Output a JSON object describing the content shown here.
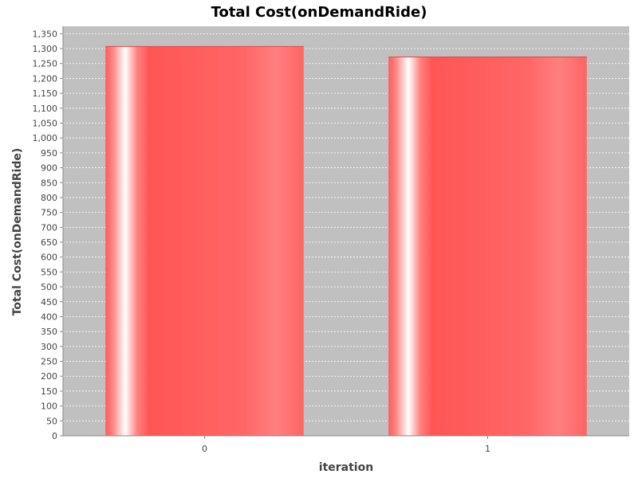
{
  "chart_data": {
    "type": "bar",
    "title": "Total Cost(onDemandRide)",
    "xlabel": "iteration",
    "ylabel": "Total Cost(onDemandRide)",
    "categories": [
      "0",
      "1"
    ],
    "values": [
      1307,
      1272
    ],
    "ylim": [
      0,
      1375
    ],
    "yticks": [
      0,
      50,
      100,
      150,
      200,
      250,
      300,
      350,
      400,
      450,
      500,
      550,
      600,
      650,
      700,
      750,
      800,
      850,
      900,
      950,
      1000,
      1050,
      1100,
      1150,
      1200,
      1250,
      1300,
      1350
    ],
    "ytick_labels": [
      "0",
      "50",
      "100",
      "150",
      "200",
      "250",
      "300",
      "350",
      "400",
      "450",
      "500",
      "550",
      "600",
      "650",
      "700",
      "750",
      "800",
      "850",
      "900",
      "950",
      "1,000",
      "1,050",
      "1,100",
      "1,150",
      "1,200",
      "1,250",
      "1,300",
      "1,350"
    ],
    "grid": true,
    "colors": {
      "plot_background": "#c0c0c0",
      "bar": "#ff5555",
      "gridline": "#ffffff"
    }
  }
}
